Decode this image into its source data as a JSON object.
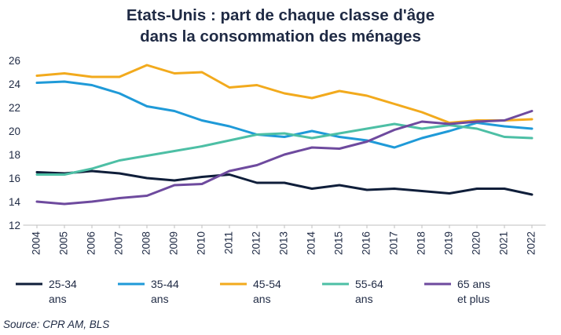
{
  "chart_data": {
    "type": "line",
    "title": [
      "Etats-Unis : part de chaque classe d'âge",
      "dans la consommation des ménages"
    ],
    "xlabel": "",
    "ylabel": "",
    "ylim": [
      12,
      26
    ],
    "yticks": [
      12,
      14,
      16,
      18,
      20,
      22,
      24,
      26
    ],
    "grid": false,
    "legend": "bottom",
    "x": [
      "2004",
      "2005",
      "2006",
      "2007",
      "2008",
      "2009",
      "2010",
      "2011",
      "2012",
      "2013",
      "2014",
      "2015",
      "2016",
      "2017",
      "2018",
      "2019",
      "2020",
      "2021",
      "2022"
    ],
    "series": [
      {
        "name": "25-34 ans",
        "label_lines": [
          "25-34",
          "ans"
        ],
        "color": "#0f1e3a",
        "values": [
          16.5,
          16.4,
          16.6,
          16.4,
          16.0,
          15.8,
          16.1,
          16.3,
          15.6,
          15.6,
          15.1,
          15.4,
          15.0,
          15.1,
          14.9,
          14.7,
          15.1,
          15.1,
          14.6
        ]
      },
      {
        "name": "35-44 ans",
        "label_lines": [
          "35-44",
          "ans"
        ],
        "color": "#1f9ad8",
        "values": [
          24.1,
          24.2,
          23.9,
          23.2,
          22.1,
          21.7,
          20.9,
          20.4,
          19.7,
          19.5,
          20.0,
          19.5,
          19.2,
          18.6,
          19.4,
          20.0,
          20.7,
          20.4,
          20.2
        ]
      },
      {
        "name": "45-54 ans",
        "label_lines": [
          "45-54",
          "ans"
        ],
        "color": "#f2aa1d",
        "values": [
          24.7,
          24.9,
          24.6,
          24.6,
          25.6,
          24.9,
          25.0,
          23.7,
          23.9,
          23.2,
          22.8,
          23.4,
          23.0,
          22.3,
          21.6,
          20.7,
          20.9,
          20.9,
          21.0
        ]
      },
      {
        "name": "55-64 ans",
        "label_lines": [
          "55-64",
          "ans"
        ],
        "color": "#4dbfa5",
        "values": [
          16.3,
          16.3,
          16.8,
          17.5,
          17.9,
          18.3,
          18.7,
          19.2,
          19.7,
          19.8,
          19.4,
          19.8,
          20.2,
          20.6,
          20.2,
          20.5,
          20.2,
          19.5,
          19.4
        ]
      },
      {
        "name": "65 ans et plus",
        "label_lines": [
          "65 ans",
          "et plus"
        ],
        "color": "#6e4a9e",
        "values": [
          14.0,
          13.8,
          14.0,
          14.3,
          14.5,
          15.4,
          15.5,
          16.6,
          17.1,
          18.0,
          18.6,
          18.5,
          19.1,
          20.1,
          20.8,
          20.6,
          20.8,
          20.9,
          21.7
        ]
      }
    ]
  },
  "source": "Source: CPR AM, BLS"
}
